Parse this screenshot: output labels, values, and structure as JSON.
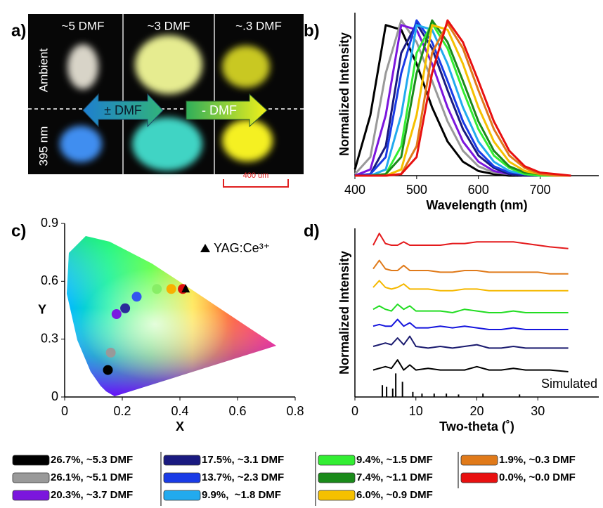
{
  "panel_a": {
    "label": "a)",
    "columns": [
      "~5 DMF",
      "~3 DMF",
      "~.3 DMF"
    ],
    "rows": [
      "Ambient",
      "395 nm"
    ],
    "arrows": [
      "± DMF",
      "- DMF"
    ],
    "scale_bar": "400 um"
  },
  "chart_data": [
    {
      "type": "line",
      "panel_label": "b)",
      "xlabel": "Wavelength (nm)",
      "ylabel": "Normalized Intensity",
      "x": [
        400,
        425,
        450,
        475,
        500,
        525,
        550,
        575,
        600,
        625,
        650,
        675,
        700,
        725,
        750
      ],
      "xlim": [
        400,
        795
      ],
      "xticks": [
        400,
        500,
        600,
        700
      ],
      "ylim": [
        0,
        1.05
      ],
      "series": [
        {
          "name": "26.7%, ~5.3 DMF",
          "color": "#000000",
          "values": [
            0.04,
            0.39,
            0.97,
            0.94,
            0.72,
            0.44,
            0.22,
            0.09,
            0.03,
            0.01,
            0,
            0,
            0,
            0,
            0
          ]
        },
        {
          "name": "26.1%, ~5.1 DMF",
          "color": "#999999",
          "values": [
            0.01,
            0.12,
            0.66,
            1.0,
            0.86,
            0.61,
            0.35,
            0.16,
            0.06,
            0.02,
            0.01,
            0,
            0,
            0,
            0
          ]
        },
        {
          "name": "20.3%, ~3.7 DMF",
          "color": "#7b16dd",
          "values": [
            0,
            0.04,
            0.39,
            0.97,
            0.94,
            0.72,
            0.44,
            0.22,
            0.09,
            0.03,
            0.01,
            0,
            0,
            0,
            0
          ]
        },
        {
          "name": "17.5%, ~3.1 DMF",
          "color": "#1a1a80",
          "values": [
            0,
            0.01,
            0.19,
            0.79,
            0.98,
            0.82,
            0.55,
            0.3,
            0.13,
            0.05,
            0.01,
            0,
            0,
            0,
            0
          ]
        },
        {
          "name": "13.7%, ~2.3 DMF",
          "color": "#1a3be6",
          "values": [
            0,
            0.01,
            0.12,
            0.66,
            1.0,
            0.86,
            0.61,
            0.35,
            0.16,
            0.06,
            0.02,
            0.01,
            0,
            0,
            0
          ]
        },
        {
          "name": "9.9%,  ~1.8 DMF",
          "color": "#22aaee",
          "values": [
            0,
            0,
            0.04,
            0.39,
            0.97,
            0.94,
            0.72,
            0.44,
            0.22,
            0.09,
            0.03,
            0.01,
            0,
            0,
            0
          ]
        },
        {
          "name": "9.4%, ~1.5 DMF",
          "color": "#33ee33",
          "values": [
            0,
            0,
            0.01,
            0.19,
            0.79,
            0.98,
            0.82,
            0.55,
            0.3,
            0.13,
            0.05,
            0.01,
            0,
            0,
            0
          ]
        },
        {
          "name": "7.4%, ~1.1 DMF",
          "color": "#1a8a1a",
          "values": [
            0,
            0,
            0.01,
            0.12,
            0.66,
            1.0,
            0.86,
            0.61,
            0.35,
            0.16,
            0.06,
            0.02,
            0.01,
            0,
            0
          ]
        },
        {
          "name": "6.0%, ~0.9 DMF",
          "color": "#f5c000",
          "values": [
            0,
            0,
            0,
            0.04,
            0.39,
            0.97,
            0.94,
            0.72,
            0.44,
            0.22,
            0.09,
            0.03,
            0.01,
            0,
            0
          ]
        },
        {
          "name": "1.9%, ~0.3 DMF",
          "color": "#e07a1a",
          "values": [
            0,
            0,
            0,
            0.01,
            0.19,
            0.79,
            0.98,
            0.82,
            0.55,
            0.3,
            0.13,
            0.05,
            0.01,
            0,
            0
          ]
        },
        {
          "name": "0.0%, ~0.0 DMF",
          "color": "#e81010",
          "values": [
            0,
            0,
            0,
            0.01,
            0.12,
            0.66,
            1.0,
            0.86,
            0.61,
            0.35,
            0.16,
            0.06,
            0.02,
            0.01,
            0
          ]
        }
      ]
    },
    {
      "type": "scatter",
      "panel_label": "c)",
      "xlabel": "X",
      "ylabel": "Y",
      "xlim": [
        0,
        0.8
      ],
      "xticks": [
        0,
        0.2,
        0.4,
        0.6,
        0.8
      ],
      "ylim": [
        0,
        0.9
      ],
      "yticks": [
        0,
        0.3,
        0.6,
        0.9
      ],
      "series": [
        {
          "color": "#000000",
          "x": [
            0.15
          ],
          "values": [
            0.14
          ]
        },
        {
          "color": "#999999",
          "x": [
            0.16
          ],
          "values": [
            0.23
          ]
        },
        {
          "color": "#7a1ae0",
          "x": [
            0.18
          ],
          "values": [
            0.43
          ]
        },
        {
          "color": "#2a2a9a",
          "x": [
            0.21
          ],
          "values": [
            0.46
          ]
        },
        {
          "color": "#3355ee",
          "x": [
            0.25
          ],
          "values": [
            0.52
          ]
        },
        {
          "color": "#88ee66",
          "x": [
            0.32
          ],
          "values": [
            0.56
          ]
        },
        {
          "color": "#f8b000",
          "x": [
            0.37
          ],
          "values": [
            0.56
          ]
        },
        {
          "color": "#e01010",
          "x": [
            0.41
          ],
          "values": [
            0.56
          ]
        }
      ],
      "reference": {
        "name": "YAG:Ce³⁺",
        "color": "#000000",
        "x": 0.42,
        "y": 0.56
      }
    },
    {
      "type": "line",
      "panel_label": "d)",
      "xlabel": "Two-theta (˚)",
      "ylabel": "Normalized Intensity",
      "x": [
        3,
        4,
        5,
        6,
        7,
        8,
        9,
        10,
        12,
        14,
        16,
        18,
        20,
        22,
        24,
        26,
        28,
        30,
        32,
        35
      ],
      "xlim": [
        0,
        40
      ],
      "xticks": [
        0,
        10,
        20,
        30
      ],
      "ylim": [
        0,
        10
      ],
      "series": [
        {
          "color": "#e41a1c",
          "values": [
            9.0,
            9.7,
            9.1,
            9.0,
            9.0,
            9.2,
            9.0,
            9.0,
            9.0,
            9.0,
            9.1,
            9.1,
            9.2,
            9.2,
            9.2,
            9.2,
            9.1,
            9.0,
            8.9,
            8.8
          ]
        },
        {
          "color": "#e07a1a",
          "values": [
            7.6,
            8.1,
            7.6,
            7.5,
            7.5,
            7.8,
            7.5,
            7.5,
            7.5,
            7.4,
            7.4,
            7.5,
            7.5,
            7.4,
            7.4,
            7.4,
            7.4,
            7.4,
            7.3,
            7.3
          ]
        },
        {
          "color": "#f5b800",
          "values": [
            6.5,
            6.9,
            6.5,
            6.4,
            6.5,
            6.7,
            6.4,
            6.4,
            6.4,
            6.3,
            6.3,
            6.4,
            6.4,
            6.3,
            6.3,
            6.3,
            6.3,
            6.3,
            6.3,
            6.3
          ]
        },
        {
          "color": "#22dd22",
          "values": [
            5.2,
            5.4,
            5.2,
            5.1,
            5.5,
            5.2,
            5.4,
            5.1,
            5.1,
            5.1,
            5.0,
            5.2,
            5.1,
            5.0,
            5.0,
            5.1,
            5.0,
            5.0,
            5.0,
            5.0
          ]
        },
        {
          "color": "#1515dd",
          "values": [
            4.2,
            4.3,
            4.2,
            4.2,
            4.6,
            4.2,
            4.4,
            4.1,
            4.1,
            4.2,
            4.1,
            4.2,
            4.1,
            4.0,
            4.0,
            4.1,
            4.0,
            4.0,
            4.0,
            4.0
          ]
        },
        {
          "color": "#1a1a6e",
          "values": [
            3.0,
            3.1,
            3.2,
            3.1,
            3.5,
            3.1,
            3.6,
            3.0,
            2.9,
            3.0,
            2.9,
            3.0,
            3.1,
            2.9,
            2.9,
            3.0,
            2.9,
            2.9,
            2.9,
            2.9
          ]
        },
        {
          "color": "#000000",
          "values": [
            1.6,
            1.7,
            1.8,
            1.7,
            2.2,
            1.6,
            1.9,
            1.6,
            1.7,
            1.6,
            1.6,
            1.6,
            1.8,
            1.6,
            1.6,
            1.7,
            1.6,
            1.6,
            1.6,
            1.5
          ]
        }
      ],
      "sticks": {
        "name": "Simulated",
        "color": "#000000",
        "x": [
          4.5,
          5.2,
          6.2,
          6.7,
          7.8,
          9.5,
          11,
          13,
          15,
          17,
          21,
          27
        ],
        "values": [
          0.7,
          0.6,
          0.5,
          1.4,
          0.9,
          0.3,
          0.2,
          0.2,
          0.2,
          0.15,
          0.2,
          0.15
        ]
      }
    }
  ]
}
